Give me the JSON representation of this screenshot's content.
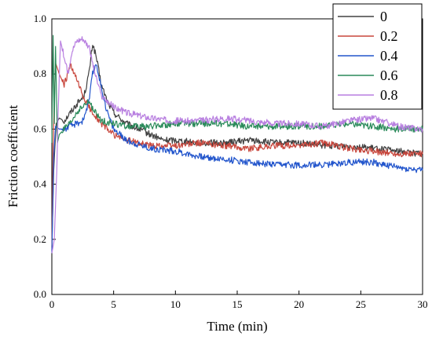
{
  "chart_data": {
    "type": "line",
    "xlabel": "Time (min)",
    "ylabel": "Friction coefficient",
    "xlim": [
      0,
      30
    ],
    "ylim": [
      0.0,
      1.0
    ],
    "xticks": [
      0,
      5,
      10,
      15,
      20,
      25,
      30
    ],
    "xtick_labels": [
      "0",
      "5",
      "10",
      "15",
      "20",
      "25",
      "30"
    ],
    "yticks": [
      0.0,
      0.2,
      0.4,
      0.6,
      0.8,
      1.0
    ],
    "ytick_labels": [
      "0.0",
      "0.2",
      "0.4",
      "0.6",
      "0.8",
      "1.0"
    ],
    "grid": false,
    "legend_position": "top-right",
    "series": [
      {
        "name": "0",
        "color": "#404040",
        "x": [
          0,
          0.15,
          0.35,
          0.6,
          1.0,
          1.5,
          2.0,
          2.6,
          3.0,
          3.3,
          3.6,
          4.0,
          4.5,
          5.0,
          6.0,
          7.0,
          8.0,
          9.0,
          10.0,
          12.0,
          14.0,
          16.0,
          18.0,
          20.0,
          22.0,
          24.0,
          26.0,
          28.0,
          30.0
        ],
        "values": [
          0.17,
          0.45,
          0.62,
          0.64,
          0.63,
          0.66,
          0.69,
          0.72,
          0.8,
          0.91,
          0.86,
          0.76,
          0.7,
          0.66,
          0.62,
          0.6,
          0.58,
          0.56,
          0.56,
          0.55,
          0.55,
          0.56,
          0.55,
          0.55,
          0.54,
          0.54,
          0.53,
          0.52,
          0.51
        ]
      },
      {
        "name": "0.2",
        "color": "#c8463c",
        "x": [
          0,
          0.1,
          0.3,
          0.6,
          1.0,
          1.5,
          2.0,
          2.5,
          3.0,
          3.5,
          4.0,
          5.0,
          6.0,
          7.0,
          8.0,
          10.0,
          12.0,
          14.0,
          16.0,
          18.0,
          20.0,
          22.0,
          24.0,
          26.0,
          28.0,
          30.0
        ],
        "values": [
          0.16,
          0.55,
          0.84,
          0.8,
          0.76,
          0.83,
          0.78,
          0.72,
          0.68,
          0.65,
          0.62,
          0.58,
          0.56,
          0.55,
          0.54,
          0.54,
          0.55,
          0.54,
          0.53,
          0.54,
          0.54,
          0.55,
          0.53,
          0.52,
          0.51,
          0.51
        ]
      },
      {
        "name": "0.4",
        "color": "#2255cc",
        "x": [
          0,
          0.15,
          0.3,
          0.6,
          1.0,
          1.5,
          2.0,
          2.5,
          3.0,
          3.3,
          3.6,
          4.0,
          4.5,
          5.0,
          6.0,
          8.0,
          10.0,
          12.0,
          14.0,
          16.0,
          18.0,
          20.0,
          22.0,
          24.0,
          26.0,
          28.0,
          30.0
        ],
        "values": [
          0.15,
          0.5,
          0.61,
          0.6,
          0.6,
          0.61,
          0.62,
          0.63,
          0.7,
          0.8,
          0.84,
          0.75,
          0.66,
          0.6,
          0.56,
          0.53,
          0.52,
          0.5,
          0.49,
          0.48,
          0.47,
          0.47,
          0.47,
          0.48,
          0.48,
          0.46,
          0.45
        ]
      },
      {
        "name": "0.6",
        "color": "#2a8a5a",
        "x": [
          0,
          0.1,
          0.2,
          0.3,
          0.45,
          0.6,
          1.0,
          1.5,
          2.0,
          2.5,
          3.0,
          3.5,
          4.0,
          5.0,
          6.0,
          8.0,
          10.0,
          12.0,
          14.0,
          16.0,
          18.0,
          20.0,
          22.0,
          24.0,
          26.0,
          28.0,
          30.0
        ],
        "values": [
          0.55,
          0.94,
          0.62,
          0.9,
          0.55,
          0.58,
          0.6,
          0.62,
          0.66,
          0.68,
          0.7,
          0.66,
          0.63,
          0.62,
          0.61,
          0.61,
          0.62,
          0.62,
          0.62,
          0.61,
          0.61,
          0.61,
          0.61,
          0.62,
          0.61,
          0.6,
          0.6
        ]
      },
      {
        "name": "0.8",
        "color": "#b87fe0",
        "x": [
          0,
          0.2,
          0.4,
          0.5,
          0.7,
          1.0,
          1.3,
          1.6,
          2.0,
          2.5,
          3.0,
          3.5,
          4.0,
          5.0,
          6.0,
          8.0,
          10.0,
          12.0,
          14.0,
          16.0,
          18.0,
          20.0,
          22.0,
          24.0,
          26.0,
          28.0,
          30.0
        ],
        "values": [
          0.15,
          0.2,
          0.45,
          0.65,
          0.92,
          0.86,
          0.8,
          0.88,
          0.92,
          0.93,
          0.9,
          0.8,
          0.72,
          0.68,
          0.66,
          0.64,
          0.63,
          0.63,
          0.64,
          0.63,
          0.62,
          0.62,
          0.61,
          0.63,
          0.64,
          0.61,
          0.6
        ]
      }
    ]
  }
}
